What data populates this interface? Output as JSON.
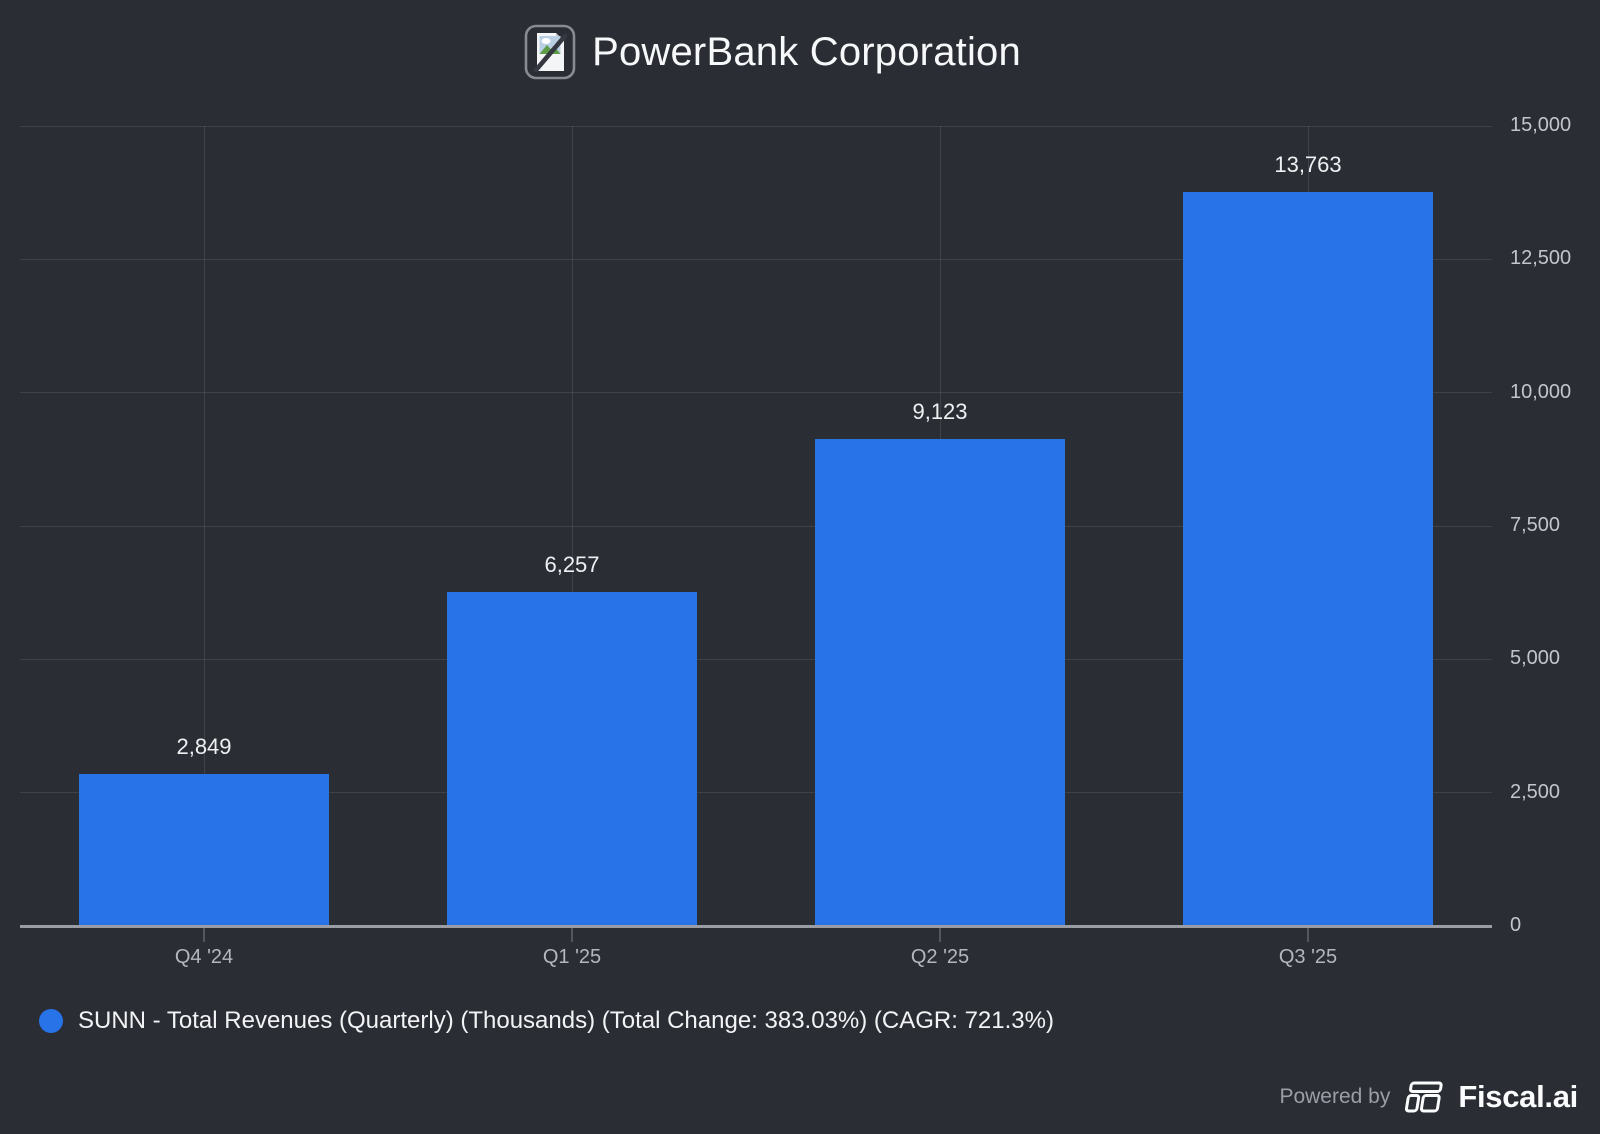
{
  "header": {
    "title": "PowerBank Corporation",
    "icon": "broken-image-icon"
  },
  "chart_data": {
    "type": "bar",
    "title": "PowerBank Corporation",
    "categories": [
      "Q4 '24",
      "Q1 '25",
      "Q2 '25",
      "Q3 '25"
    ],
    "values": [
      2849,
      6257,
      9123,
      13763
    ],
    "value_labels": [
      "2,849",
      "6,257",
      "9,123",
      "13,763"
    ],
    "series_name": "SUNN - Total Revenues (Quarterly) (Thousands)",
    "xlabel": "",
    "ylabel": "",
    "ylim": [
      0,
      15000
    ],
    "yticks": [
      0,
      2500,
      5000,
      7500,
      10000,
      12500,
      15000
    ],
    "ytick_labels": [
      "0",
      "2,500",
      "5,000",
      "7,500",
      "10,000",
      "12,500",
      "15,000"
    ],
    "grid": true,
    "legend_position": "bottom-left",
    "bar_color": "#2873E8"
  },
  "legend": {
    "label": "SUNN - Total Revenues (Quarterly) (Thousands) (Total Change: 383.03%) (CAGR: 721.3%)",
    "marker_color": "#2873E8"
  },
  "footer": {
    "powered_by": "Powered by",
    "brand": "Fiscal.ai"
  },
  "colors": {
    "background": "#2B2D35",
    "bar": "#2873E8",
    "gridline": "rgba(255,255,255,0.10)",
    "axis_line": "#9A9DA4",
    "title_text": "#F7F8F9",
    "tick_text": "#C3C5CA",
    "category_text": "#B4B7BD",
    "value_text": "#EEF0F2",
    "legend_text": "#F2F3F5",
    "powered_by_text": "#9A9EA6"
  }
}
